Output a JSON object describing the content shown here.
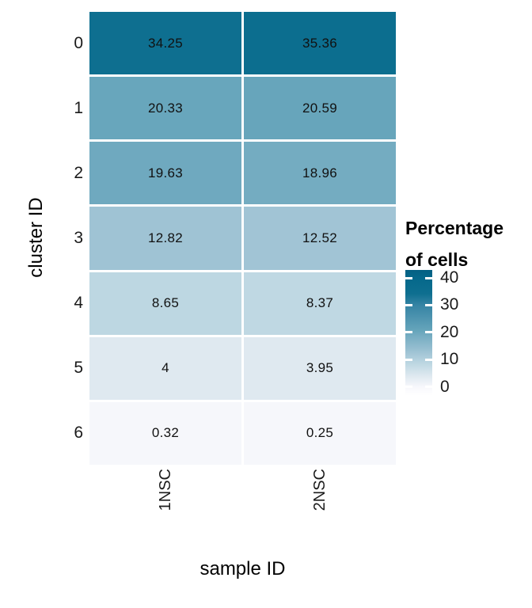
{
  "chart_data": {
    "type": "heatmap",
    "xlabel": "sample ID",
    "ylabel": "cluster ID",
    "categories_x": [
      "1NSC",
      "2NSC"
    ],
    "categories_y": [
      "0",
      "1",
      "2",
      "3",
      "4",
      "5",
      "6"
    ],
    "values": [
      [
        34.25,
        35.36
      ],
      [
        20.33,
        20.59
      ],
      [
        19.63,
        18.96
      ],
      [
        12.82,
        12.52
      ],
      [
        8.65,
        8.37
      ],
      [
        4,
        3.95
      ],
      [
        0.32,
        0.25
      ]
    ],
    "cell_labels": [
      [
        "34.25",
        "35.36"
      ],
      [
        "20.33",
        "20.59"
      ],
      [
        "19.63",
        "18.96"
      ],
      [
        "12.82",
        "12.52"
      ],
      [
        "8.65",
        "8.37"
      ],
      [
        "4",
        "3.95"
      ],
      [
        "0.32",
        "0.25"
      ]
    ],
    "legend": {
      "title_lines": [
        "Percentage",
        "of cells"
      ],
      "ticks": [
        "40",
        "30",
        "20",
        "10",
        "0"
      ],
      "position": "right"
    },
    "grid": false,
    "layout": {
      "x_tick_rotation": -90,
      "colorbar_value_top": 42.9,
      "colorbar_value_bottom": -3.2
    },
    "color_scale": {
      "stops": [
        {
          "v": -3.2,
          "c": "#ffffff"
        },
        {
          "v": 0,
          "c": "#f8f8fc"
        },
        {
          "v": 4,
          "c": "#dfe9f0"
        },
        {
          "v": 8.65,
          "c": "#bdd7e2"
        },
        {
          "v": 12.82,
          "c": "#9fc3d4"
        },
        {
          "v": 19.63,
          "c": "#6fa9bf"
        },
        {
          "v": 20.33,
          "c": "#68a6bc"
        },
        {
          "v": 30,
          "c": "#3684a4"
        },
        {
          "v": 34.25,
          "c": "#0e6f90"
        },
        {
          "v": 40,
          "c": "#05688b"
        },
        {
          "v": 43,
          "c": "#046083"
        }
      ],
      "background": "#ffffff",
      "cell_text_color": "#111111"
    }
  }
}
